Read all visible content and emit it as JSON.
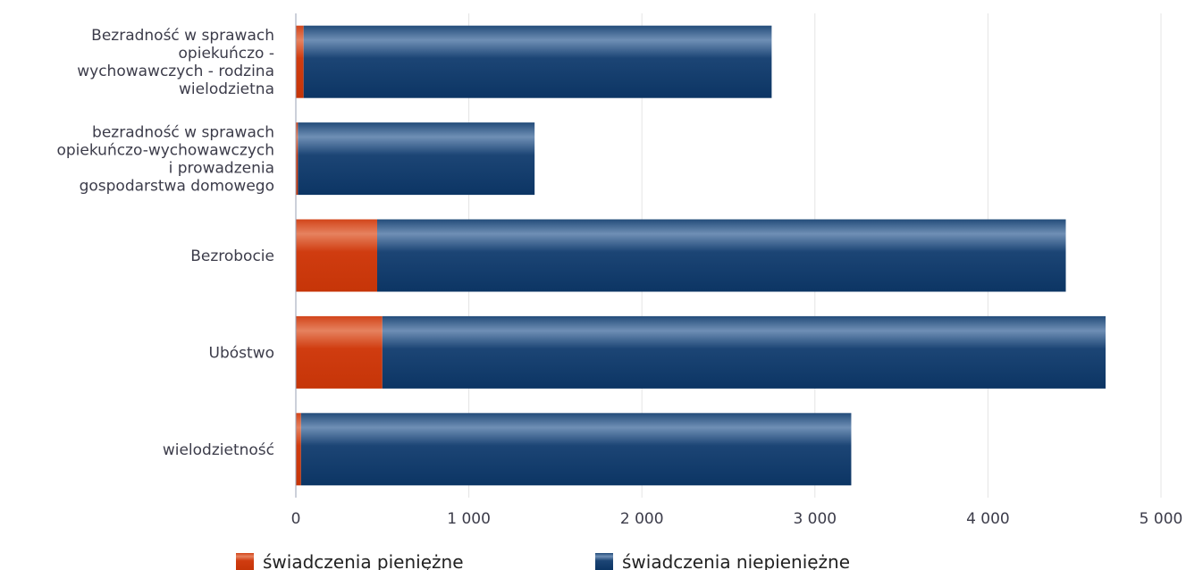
{
  "chart_data": {
    "type": "bar",
    "orientation": "horizontal",
    "stacked": true,
    "categories": [
      [
        "Bezradność w sprawach",
        "opiekuńczo -",
        "wychowawczych - rodzina",
        "wielodzietna"
      ],
      [
        "bezradność w sprawach",
        "opiekuńczo-wychowawczych",
        "i prowadzenia",
        "gospodarstwa domowego"
      ],
      [
        "Bezrobocie"
      ],
      [
        "Ubóstwo"
      ],
      [
        "wielodzietność"
      ]
    ],
    "series": [
      {
        "name": "świadczenia pieniężne",
        "color": "#cc3a10",
        "values": [
          45,
          12,
          470,
          500,
          30
        ]
      },
      {
        "name": "świadczenia niepieniężne",
        "color": "#0f3b6b",
        "values": [
          2705,
          1368,
          3980,
          4180,
          3180
        ]
      }
    ],
    "xlim": [
      0,
      5000
    ],
    "xticks": [
      0,
      1000,
      2000,
      3000,
      4000,
      5000
    ],
    "xtick_labels": [
      "0",
      "1 000",
      "2 000",
      "3 000",
      "4 000",
      "5 000"
    ],
    "grid": true,
    "legend_position": "bottom"
  }
}
